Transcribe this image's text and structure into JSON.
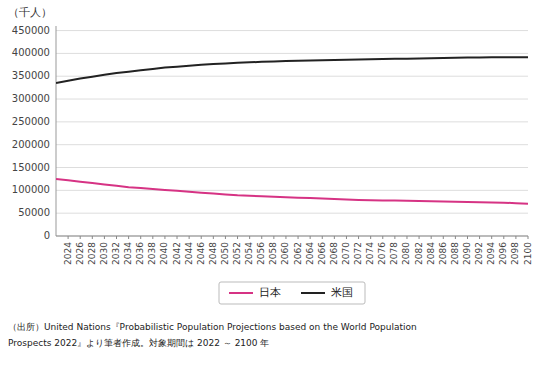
{
  "chart_data": {
    "type": "line",
    "ylabel": "（千人）",
    "x": [
      2022,
      2024,
      2026,
      2028,
      2030,
      2032,
      2034,
      2036,
      2038,
      2040,
      2042,
      2044,
      2046,
      2048,
      2050,
      2052,
      2054,
      2056,
      2058,
      2060,
      2062,
      2064,
      2066,
      2068,
      2070,
      2072,
      2074,
      2076,
      2078,
      2080,
      2082,
      2084,
      2086,
      2088,
      2090,
      2092,
      2094,
      2096,
      2098,
      2100
    ],
    "series": [
      {
        "name": "日本",
        "color": "#d63384",
        "values": [
          125000,
          122000,
          119000,
          116000,
          113000,
          110000,
          107000,
          105000,
          103000,
          101000,
          99000,
          97000,
          95000,
          93000,
          91000,
          89000,
          88000,
          87000,
          86000,
          85000,
          84000,
          83000,
          82000,
          81000,
          80000,
          79000,
          78500,
          78000,
          77500,
          77000,
          76500,
          76000,
          75500,
          75000,
          74500,
          74000,
          73500,
          73000,
          72000,
          70500
        ]
      },
      {
        "name": "米国",
        "color": "#222222",
        "values": [
          335000,
          340000,
          345000,
          349000,
          353000,
          357000,
          360000,
          363000,
          366000,
          369000,
          371000,
          373000,
          375000,
          377000,
          378000,
          379500,
          380500,
          381500,
          382500,
          383500,
          384000,
          384500,
          385000,
          385500,
          386000,
          386500,
          387000,
          387500,
          388000,
          388500,
          389000,
          389500,
          390000,
          390500,
          391000,
          391200,
          391400,
          391500,
          391600,
          391800
        ]
      }
    ],
    "xlim": [
      2022,
      2100
    ],
    "xticks": [
      2024,
      2026,
      2028,
      2030,
      2032,
      2034,
      2036,
      2038,
      2040,
      2042,
      2044,
      2046,
      2048,
      2050,
      2052,
      2054,
      2056,
      2058,
      2060,
      2062,
      2064,
      2066,
      2068,
      2070,
      2072,
      2074,
      2076,
      2078,
      2080,
      2082,
      2084,
      2086,
      2088,
      2090,
      2092,
      2094,
      2096,
      2098,
      2100
    ],
    "ylim": [
      0,
      460000
    ],
    "yticks": [
      0,
      50000,
      100000,
      150000,
      200000,
      250000,
      300000,
      350000,
      400000,
      450000
    ],
    "grid": true,
    "legend": "bottom",
    "annotations": [
      "（出所）United Nations『Probabilistic Population Projections based on the World Population",
      "Prospects 2022』より筆者作成。対象期間は 2022 ～ 2100 年"
    ]
  }
}
